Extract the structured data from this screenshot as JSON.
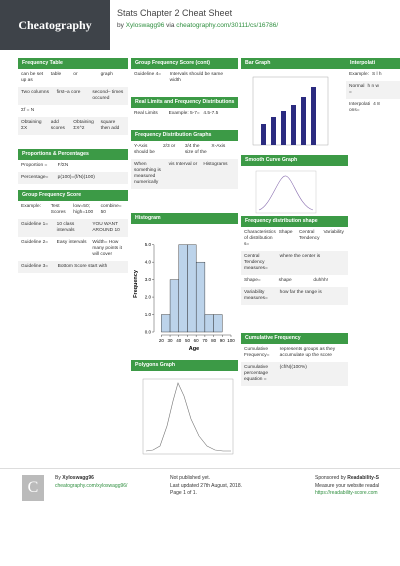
{
  "header": {
    "logo": "Cheatography",
    "title": "Stats Chapter 2 Cheat Sheet",
    "by": "by",
    "author": "Xyloswagg96",
    "via": "via",
    "url": "cheatography.com/30111/cs/16786/"
  },
  "sections": {
    "frequency_table": {
      "title": "Frequency Table",
      "rows": [
        [
          "can be set up as",
          "table",
          "or",
          "graph"
        ],
        [
          "Two columns",
          "first–a core",
          "second– times occured"
        ],
        [
          "Σf = N"
        ],
        [
          "Obtaining ΣX",
          "add scores",
          "Obtaining ΣX^2",
          "square then add"
        ]
      ]
    },
    "proportions": {
      "title": "Proportions & Percentages",
      "rows": [
        [
          "Proportion =",
          "F/ΣN"
        ],
        [
          "Percentage=",
          "p(100)=(f/N)(100)"
        ]
      ]
    },
    "group_frequency": {
      "title": "Group Frequency Score",
      "rows": [
        [
          "Example:",
          "Test Scores",
          "low=50; high=100",
          "combine= 50"
        ],
        [
          "Guideline 1=",
          "10 class intervals",
          "YOU WANT AROUND 10"
        ],
        [
          "Guideline 2=",
          "Easy intervals",
          "Width= How many points it will cover"
        ],
        [
          "Guideline 3=",
          "Bottom Score start with"
        ]
      ]
    },
    "group_frequency_cont": {
      "title": "Group Frequency Score (cont)",
      "rows": [
        [
          "Guideline 4=",
          "Intervals should be same width"
        ]
      ]
    },
    "real_limits": {
      "title": "Real Limits and Frequency Distributions",
      "rows": [
        [
          "Real Limits",
          "Example: 5-7=",
          "4.5-7.5"
        ]
      ]
    },
    "distribution_graphs": {
      "title": "Frequency Distribution Graphs",
      "rows": [
        [
          "Y-Axis should be",
          "2/3 or",
          "3/4 the size of the",
          "X-Axis"
        ],
        [
          "When something is measured numerically",
          "vis Interval or",
          "Histograms"
        ]
      ]
    },
    "histogram": {
      "title": "Histogram"
    },
    "polygons": {
      "title": "Polygons Graph"
    },
    "bar_graph": {
      "title": "Bar Graph"
    },
    "smooth_curve": {
      "title": "Smooth Curve Graph"
    },
    "distribution_shape": {
      "title": "Frequency distribution shape",
      "rows": [
        [
          "Characteristics of distribution s=",
          "Shape",
          "Central Tendency",
          "Variability"
        ],
        [
          "Central Tendency measures=",
          "where the center is"
        ],
        [
          "Shape=",
          "shape",
          "duhhh!"
        ],
        [
          "Variability measures=",
          "how far the range is"
        ]
      ]
    },
    "cumulative": {
      "title": "Cumulative Frequency",
      "rows": [
        [
          "Cumulative Frequency=",
          "represents groups as they accumulate up the score"
        ],
        [
          "Cumulative percentage equation =",
          "(cf/N)(100%)"
        ]
      ]
    },
    "interpolation": {
      "title": "Interpolati",
      "rows": [
        [
          "Example:",
          "S l h"
        ],
        [
          "Normal =",
          "h n w"
        ],
        [
          "Interpolati ons=",
          "4 8"
        ]
      ]
    }
  },
  "histogram_chart": {
    "ylabel": "Frequency",
    "xlabel": "Age",
    "bins": [
      20,
      30,
      40,
      50,
      60,
      70,
      80,
      90
    ],
    "counts": [
      1,
      3,
      5,
      5,
      4,
      1,
      1
    ],
    "xlim": [
      15,
      100
    ],
    "ylim": [
      0,
      5.5
    ],
    "xticks": [
      20,
      30,
      40,
      50,
      60,
      70,
      80,
      90,
      100
    ],
    "yticks": [
      {
        "value": 0,
        "label": "0.0"
      },
      {
        "value": 1,
        "label": "1.0"
      },
      {
        "value": 2,
        "label": "2.0"
      },
      {
        "value": 3,
        "label": "3.0"
      },
      {
        "value": 4,
        "label": "4.0"
      },
      {
        "value": 5,
        "label": "5.0"
      }
    ]
  },
  "footer": {
    "by": "By",
    "author": "Xyloswagg96",
    "author_url": "cheatography.com/xyloswagg96/",
    "published": "Not published yet.",
    "updated": "Last updated 27th August, 2018.",
    "page": "Page 1 of 1.",
    "sponsor_by": "Sponsored by",
    "sponsor": "Readability-S",
    "sponsor_text": "Measure your website readal",
    "sponsor_url": "https://readability-score.com"
  }
}
